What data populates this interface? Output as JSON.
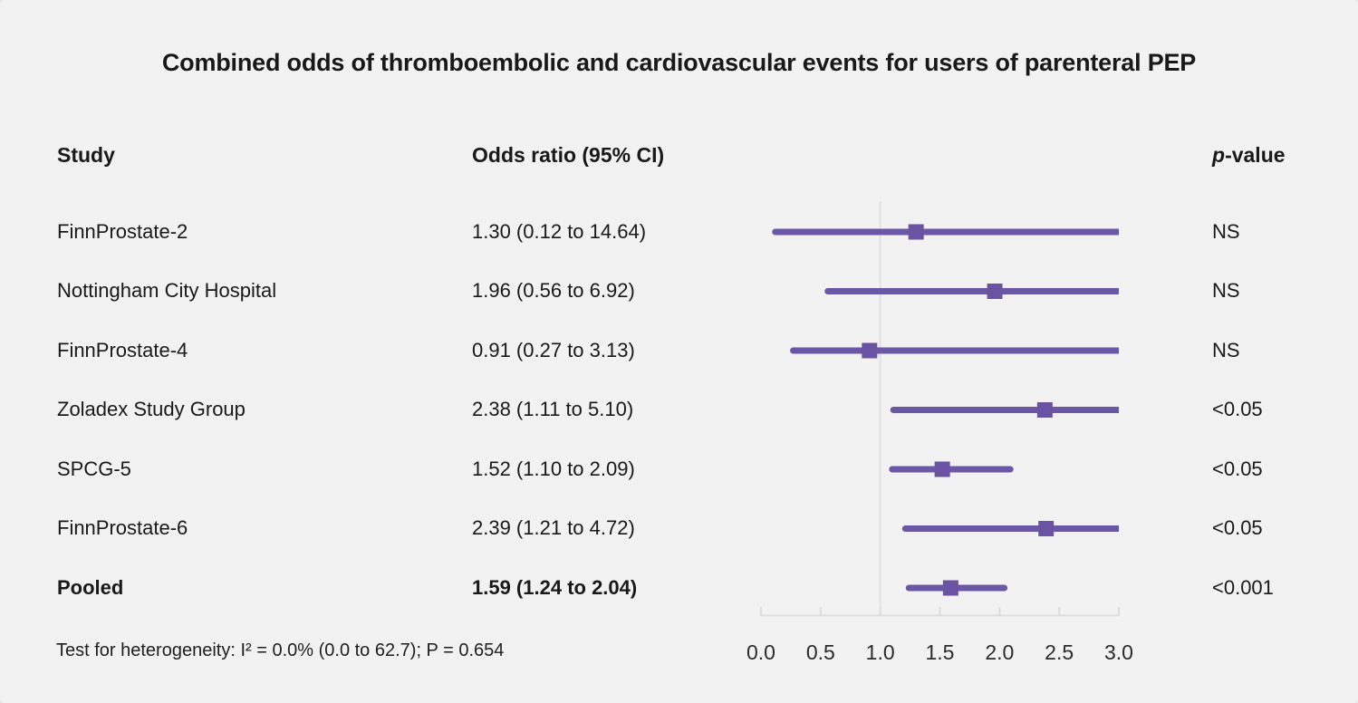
{
  "title": "Combined odds of thromboembolic and cardiovascular events for users of parenteral PEP",
  "header": {
    "study": "Study",
    "odds_ratio": "Odds ratio (95% CI)",
    "p_italic": "p",
    "p_rest": "-value"
  },
  "rows": [
    {
      "study": "FinnProstate-2",
      "or_ci": "1.30 (0.12 to 14.64)",
      "p": "NS"
    },
    {
      "study": "Nottingham City Hospital",
      "or_ci": "1.96 (0.56 to 6.92)",
      "p": "NS"
    },
    {
      "study": "FinnProstate-4",
      "or_ci": "0.91 (0.27 to 3.13)",
      "p": "NS"
    },
    {
      "study": "Zoladex Study Group",
      "or_ci": "2.38 (1.11 to 5.10)",
      "p": "<0.05"
    },
    {
      "study": "SPCG-5",
      "or_ci": "1.52 (1.10 to 2.09)",
      "p": "<0.05"
    },
    {
      "study": "FinnProstate-6",
      "or_ci": "2.39 (1.21 to 4.72)",
      "p": "<0.05"
    },
    {
      "study": "Pooled",
      "or_ci": "1.59 (1.24 to 2.04)",
      "p": "<0.001"
    }
  ],
  "footnote": "Test for heterogeneity: I² = 0.0% (0.0 to 62.7); P = 0.654",
  "colors": {
    "background": "#f2f2f2",
    "text": "#191919",
    "accent_purple": "#6a58a7",
    "marker_purple": "#6a53a3",
    "axis_gray": "#d9dde1",
    "refline_gray": "#dee2e6",
    "tick_label": "#2b2b2b"
  },
  "chart_data": {
    "type": "forest",
    "title": "Combined odds of thromboembolic and cardiovascular events for users of parenteral PEP",
    "xlabel": "Odds ratio (95% CI)",
    "xlim": [
      0,
      3
    ],
    "reference_value": 1.0,
    "ticks": [
      "0.0",
      "0.5",
      "1.0",
      "1.5",
      "2.0",
      "2.5",
      "3.0"
    ],
    "tick_values": [
      0,
      0.5,
      1.0,
      1.5,
      2.0,
      2.5,
      3.0
    ],
    "grid": false,
    "points": [
      {
        "label": "FinnProstate-2",
        "estimate": 1.3,
        "lo": 0.12,
        "hi": 14.64,
        "p": "NS"
      },
      {
        "label": "Nottingham City Hospital",
        "estimate": 1.96,
        "lo": 0.56,
        "hi": 6.92,
        "p": "NS"
      },
      {
        "label": "FinnProstate-4",
        "estimate": 0.91,
        "lo": 0.27,
        "hi": 3.13,
        "p": "NS"
      },
      {
        "label": "Zoladex Study Group",
        "estimate": 2.38,
        "lo": 1.11,
        "hi": 5.1,
        "p": "<0.05"
      },
      {
        "label": "SPCG-5",
        "estimate": 1.52,
        "lo": 1.1,
        "hi": 2.09,
        "p": "<0.05"
      },
      {
        "label": "FinnProstate-6",
        "estimate": 2.39,
        "lo": 1.21,
        "hi": 4.72,
        "p": "<0.05"
      },
      {
        "label": "Pooled",
        "estimate": 1.59,
        "lo": 1.24,
        "hi": 2.04,
        "p": "<0.001",
        "pooled": true
      }
    ],
    "heterogeneity": "Test for heterogeneity: I² = 0.0% (0.0 to 62.7); P = 0.654"
  }
}
